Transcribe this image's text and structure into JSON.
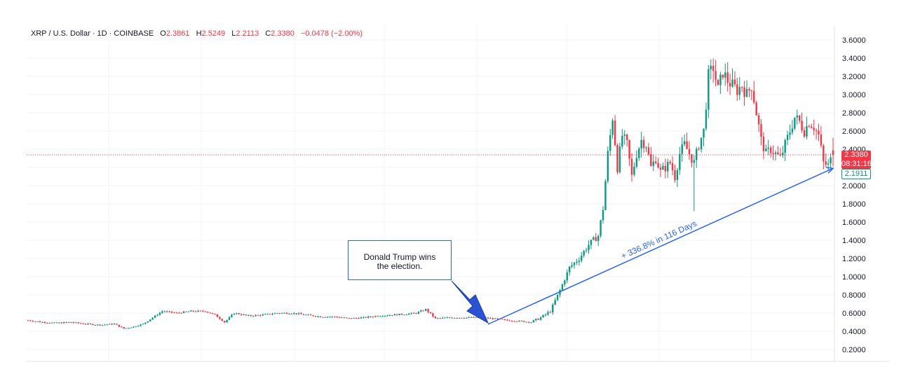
{
  "header": {
    "symbol": "XRP / U.S. Dollar · 1D · COINBASE",
    "open_label": "O",
    "open": "2.3861",
    "high_label": "H",
    "high": "2.5249",
    "low_label": "L",
    "low": "2.2113",
    "close_label": "C",
    "close": "2.3380",
    "change": "−0.0478 (−2.00%)"
  },
  "price_tags": {
    "close": "2.3380",
    "countdown": "08:31:16",
    "hover": "2.1911"
  },
  "annotations": {
    "note_line1": "Donald Trump wins",
    "note_line2": "the election.",
    "trend_label": "+ 336.8% in 116 Days"
  },
  "colors": {
    "up": "#089981",
    "down": "#f23645",
    "accent": "#2962ff",
    "grid": "#f0f3fa",
    "axis_text": "#131722"
  },
  "chart_data": {
    "type": "candlestick",
    "title": "XRP / U.S. Dollar · 1D · COINBASE",
    "y_axis": {
      "side": "right",
      "ylim": [
        0.1,
        3.7
      ],
      "ticks": [
        "3.6000",
        "3.4000",
        "3.2000",
        "3.0000",
        "2.8000",
        "2.6000",
        "2.4000",
        "2.2000",
        "2.0000",
        "1.8000",
        "1.6000",
        "1.4000",
        "1.2000",
        "1.0000",
        "0.8000",
        "0.6000",
        "0.4000",
        "0.2000"
      ]
    },
    "last_price_line": 2.338,
    "grid": true,
    "daily_close_path": [
      [
        0,
        0.52
      ],
      [
        6,
        0.5
      ],
      [
        12,
        0.49
      ],
      [
        18,
        0.5
      ],
      [
        24,
        0.48
      ],
      [
        30,
        0.47
      ],
      [
        36,
        0.48
      ],
      [
        40,
        0.43
      ],
      [
        44,
        0.45
      ],
      [
        48,
        0.48
      ],
      [
        52,
        0.55
      ],
      [
        56,
        0.62
      ],
      [
        62,
        0.6
      ],
      [
        68,
        0.62
      ],
      [
        74,
        0.62
      ],
      [
        78,
        0.58
      ],
      [
        82,
        0.5
      ],
      [
        86,
        0.6
      ],
      [
        92,
        0.57
      ],
      [
        98,
        0.58
      ],
      [
        104,
        0.6
      ],
      [
        110,
        0.6
      ],
      [
        116,
        0.58
      ],
      [
        122,
        0.56
      ],
      [
        128,
        0.56
      ],
      [
        134,
        0.54
      ],
      [
        140,
        0.55
      ],
      [
        146,
        0.57
      ],
      [
        152,
        0.58
      ],
      [
        158,
        0.59
      ],
      [
        162,
        0.6
      ],
      [
        166,
        0.64
      ],
      [
        170,
        0.54
      ],
      [
        176,
        0.55
      ],
      [
        182,
        0.55
      ],
      [
        188,
        0.55
      ],
      [
        194,
        0.54
      ],
      [
        200,
        0.52
      ],
      [
        206,
        0.51
      ],
      [
        210,
        0.5
      ],
      [
        214,
        0.55
      ],
      [
        218,
        0.62
      ],
      [
        222,
        0.85
      ],
      [
        226,
        1.1
      ],
      [
        230,
        1.2
      ],
      [
        234,
        1.35
      ],
      [
        238,
        1.45
      ],
      [
        240,
        1.75
      ],
      [
        242,
        2.35
      ],
      [
        244,
        2.75
      ],
      [
        246,
        2.2
      ],
      [
        248,
        2.55
      ],
      [
        250,
        2.45
      ],
      [
        252,
        2.1
      ],
      [
        254,
        2.35
      ],
      [
        256,
        2.5
      ],
      [
        258,
        2.45
      ],
      [
        260,
        2.2
      ],
      [
        262,
        2.3
      ],
      [
        264,
        2.15
      ],
      [
        266,
        2.2
      ],
      [
        268,
        2.25
      ],
      [
        270,
        2.1
      ],
      [
        272,
        2.35
      ],
      [
        274,
        2.45
      ],
      [
        276,
        2.35
      ],
      [
        278,
        2.25
      ],
      [
        280,
        2.45
      ],
      [
        282,
        2.6
      ],
      [
        284,
        3.2
      ],
      [
        286,
        3.3
      ],
      [
        288,
        3.05
      ],
      [
        290,
        3.25
      ],
      [
        292,
        3.15
      ],
      [
        294,
        3.1
      ],
      [
        296,
        3.05
      ],
      [
        298,
        3.1
      ],
      [
        300,
        3.0
      ],
      [
        302,
        3.1
      ],
      [
        304,
        2.8
      ],
      [
        306,
        2.5
      ],
      [
        308,
        2.35
      ],
      [
        310,
        2.4
      ],
      [
        312,
        2.35
      ],
      [
        314,
        2.3
      ],
      [
        316,
        2.45
      ],
      [
        318,
        2.6
      ],
      [
        320,
        2.75
      ],
      [
        322,
        2.7
      ],
      [
        324,
        2.6
      ],
      [
        326,
        2.7
      ],
      [
        328,
        2.65
      ],
      [
        330,
        2.55
      ],
      [
        332,
        2.25
      ],
      [
        334,
        2.22
      ],
      [
        336,
        2.34
      ]
    ],
    "trend_line": {
      "from": [
        210,
        0.5
      ],
      "to": [
        336,
        2.19
      ],
      "label": "+ 336.8% in 116 Days"
    }
  }
}
